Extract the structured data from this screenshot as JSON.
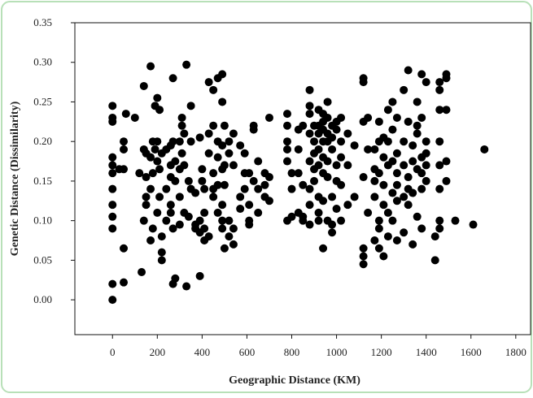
{
  "chart_data": {
    "type": "scatter",
    "xlabel": "Geographic Distance (KM)",
    "ylabel": "Genetic Distance (Dissimilarity)",
    "color": "#000000",
    "xlim": [
      -168,
      1866
    ],
    "ylim": [
      -0.044,
      0.35
    ],
    "xticks": [
      0,
      200,
      400,
      600,
      800,
      1000,
      1200,
      1400,
      1600,
      1800
    ],
    "yticks": [
      {
        "value": 0,
        "label": "0.00"
      },
      {
        "value": 0.05,
        "label": "0.05"
      },
      {
        "value": 0.1,
        "label": "0.10"
      },
      {
        "value": 0.15,
        "label": "0.15"
      },
      {
        "value": 0.2,
        "label": "0.20"
      },
      {
        "value": 0.25,
        "label": "0.25"
      },
      {
        "value": 0.3,
        "label": "0.30"
      },
      {
        "value": 0.35,
        "label": "0.35"
      }
    ],
    "x": [
      0,
      0,
      0,
      0,
      0,
      0,
      0,
      0,
      0,
      0,
      0,
      0,
      30,
      50,
      50,
      50,
      50,
      50,
      60,
      100,
      120,
      130,
      140,
      140,
      140,
      150,
      150,
      150,
      150,
      170,
      170,
      170,
      170,
      180,
      180,
      180,
      190,
      190,
      200,
      200,
      200,
      200,
      210,
      210,
      210,
      220,
      220,
      220,
      220,
      240,
      240,
      240,
      260,
      260,
      260,
      260,
      260,
      270,
      270,
      270,
      270,
      280,
      280,
      280,
      300,
      300,
      300,
      300,
      310,
      310,
      310,
      320,
      320,
      320,
      330,
      330,
      340,
      340,
      350,
      350,
      350,
      370,
      370,
      370,
      390,
      390,
      390,
      390,
      400,
      400,
      410,
      410,
      410,
      410,
      430,
      430,
      430,
      430,
      450,
      450,
      450,
      450,
      450,
      470,
      470,
      470,
      470,
      470,
      490,
      490,
      490,
      490,
      490,
      490,
      490,
      500,
      500,
      500,
      500,
      520,
      520,
      520,
      520,
      540,
      540,
      540,
      540,
      570,
      570,
      570,
      590,
      590,
      590,
      610,
      610,
      610,
      610,
      630,
      630,
      630,
      650,
      650,
      650,
      680,
      680,
      680,
      700,
      700,
      700,
      780,
      780,
      780,
      780,
      780,
      780,
      800,
      800,
      800,
      830,
      830,
      830,
      830,
      850,
      850,
      850,
      850,
      880,
      880,
      880,
      880,
      880,
      880,
      880,
      880,
      900,
      900,
      900,
      900,
      900,
      920,
      920,
      920,
      920,
      920,
      920,
      920,
      920,
      940,
      940,
      940,
      940,
      940,
      940,
      940,
      940,
      960,
      960,
      960,
      960,
      960,
      960,
      960,
      980,
      980,
      980,
      980,
      980,
      980,
      1000,
      1000,
      1000,
      1000,
      1000,
      1020,
      1020,
      1020,
      1020,
      1020,
      1050,
      1050,
      1050,
      1080,
      1080,
      1120,
      1120,
      1120,
      1120,
      1120,
      1120,
      1120,
      1140,
      1140,
      1140,
      1170,
      1170,
      1170,
      1170,
      1170,
      1190,
      1190,
      1190,
      1190,
      1190,
      1190,
      1210,
      1210,
      1210,
      1210,
      1210,
      1230,
      1230,
      1230,
      1230,
      1230,
      1250,
      1250,
      1250,
      1250,
      1250,
      1270,
      1270,
      1270,
      1270,
      1270,
      1270,
      1300,
      1300,
      1300,
      1300,
      1300,
      1320,
      1320,
      1320,
      1320,
      1320,
      1340,
      1340,
      1340,
      1340,
      1360,
      1360,
      1360,
      1360,
      1360,
      1380,
      1380,
      1380,
      1380,
      1380,
      1380,
      1400,
      1400,
      1400,
      1400,
      1400,
      1440,
      1440,
      1460,
      1460,
      1460,
      1460,
      1460,
      1460,
      1460,
      1460,
      1490,
      1490,
      1490,
      1490,
      1490,
      1530,
      1610,
      1660
    ],
    "values": [
      0.245,
      0.23,
      0.225,
      0.18,
      0.17,
      0.16,
      0.14,
      0.12,
      0.105,
      0.09,
      0.02,
      0,
      0.165,
      0.19,
      0.2,
      0.165,
      0.065,
      0.022,
      0.235,
      0.23,
      0.16,
      0.035,
      0.27,
      0.19,
      0.1,
      0.185,
      0.155,
      0.13,
      0.12,
      0.295,
      0.18,
      0.14,
      0.075,
      0.2,
      0.16,
      0.09,
      0.245,
      0.19,
      0.255,
      0.2,
      0.175,
      0.11,
      0.24,
      0.165,
      0.13,
      0.185,
      0.08,
      0.05,
      0.06,
      0.19,
      0.14,
      0.1,
      0.195,
      0.17,
      0.155,
      0.12,
      0.11,
      0.28,
      0.2,
      0.09,
      0.02,
      0.175,
      0.15,
      0.027,
      0.2,
      0.165,
      0.13,
      0.095,
      0.23,
      0.22,
      0.185,
      0.21,
      0.17,
      0.11,
      0.297,
      0.017,
      0.15,
      0.105,
      0.245,
      0.2,
      0.14,
      0.09,
      0.095,
      0.135,
      0.205,
      0.1,
      0.085,
      0.03,
      0.165,
      0.15,
      0.14,
      0.11,
      0.09,
      0.075,
      0.275,
      0.21,
      0.185,
      0.08,
      0.265,
      0.22,
      0.16,
      0.14,
      0.13,
      0.28,
      0.2,
      0.18,
      0.145,
      0.11,
      0.285,
      0.25,
      0.195,
      0.165,
      0.12,
      0.1,
      0.09,
      0.22,
      0.17,
      0.145,
      0.065,
      0.2,
      0.185,
      0.1,
      0.08,
      0.21,
      0.17,
      0.09,
      0.07,
      0.195,
      0.13,
      0.115,
      0.185,
      0.14,
      0.16,
      0.16,
      0.12,
      0.095,
      0.1,
      0.22,
      0.215,
      0.15,
      0.175,
      0.14,
      0.11,
      0.145,
      0.13,
      0.16,
      0.23,
      0.125,
      0.155,
      0.235,
      0.22,
      0.2,
      0.19,
      0.175,
      0.1,
      0.16,
      0.14,
      0.105,
      0.215,
      0.19,
      0.16,
      0.11,
      0.22,
      0.145,
      0.105,
      0.1,
      0.265,
      0.245,
      0.235,
      0.21,
      0.175,
      0.14,
      0.12,
      0.095,
      0.22,
      0.2,
      0.185,
      0.165,
      0.15,
      0.24,
      0.22,
      0.21,
      0.19,
      0.17,
      0.13,
      0.11,
      0.1,
      0.235,
      0.225,
      0.215,
      0.2,
      0.18,
      0.16,
      0.125,
      0.065,
      0.25,
      0.23,
      0.21,
      0.2,
      0.175,
      0.155,
      0.1,
      0.22,
      0.205,
      0.19,
      0.13,
      0.095,
      0.085,
      0.225,
      0.215,
      0.17,
      0.15,
      0.115,
      0.23,
      0.2,
      0.18,
      0.145,
      0.1,
      0.21,
      0.17,
      0.12,
      0.195,
      0.13,
      0.28,
      0.275,
      0.225,
      0.155,
      0.065,
      0.045,
      0.055,
      0.23,
      0.19,
      0.11,
      0.19,
      0.165,
      0.15,
      0.13,
      0.075,
      0.225,
      0.2,
      0.16,
      0.09,
      0.1,
      0.065,
      0.205,
      0.18,
      0.145,
      0.12,
      0.055,
      0.24,
      0.2,
      0.17,
      0.11,
      0.08,
      0.25,
      0.215,
      0.175,
      0.135,
      0.1,
      0.23,
      0.185,
      0.16,
      0.145,
      0.125,
      0.075,
      0.265,
      0.2,
      0.17,
      0.13,
      0.085,
      0.29,
      0.225,
      0.155,
      0.14,
      0.12,
      0.195,
      0.175,
      0.135,
      0.07,
      0.25,
      0.22,
      0.21,
      0.165,
      0.105,
      0.285,
      0.23,
      0.18,
      0.16,
      0.14,
      0.09,
      0.275,
      0.2,
      0.185,
      0.17,
      0.15,
      0.08,
      0.05,
      0.275,
      0.265,
      0.24,
      0.2,
      0.17,
      0.14,
      0.09,
      0.1,
      0.285,
      0.28,
      0.24,
      0.175,
      0.15,
      0.1,
      0.095,
      0.19
    ]
  }
}
